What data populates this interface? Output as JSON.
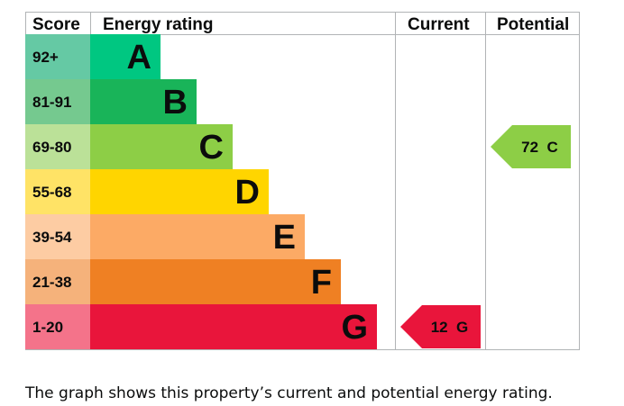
{
  "chart_data": {
    "type": "bar",
    "headers": {
      "score": "Score",
      "energy_rating": "Energy rating",
      "current": "Current",
      "potential": "Potential"
    },
    "bands": [
      {
        "letter": "A",
        "range": "92+",
        "color": "#00c781",
        "score_color": "#65c9a4"
      },
      {
        "letter": "B",
        "range": "81-91",
        "color": "#19b459",
        "score_color": "#75c98f"
      },
      {
        "letter": "C",
        "range": "69-80",
        "color": "#8dce46",
        "score_color": "#bbe198"
      },
      {
        "letter": "D",
        "range": "55-68",
        "color": "#ffd500",
        "score_color": "#ffe366"
      },
      {
        "letter": "E",
        "range": "39-54",
        "color": "#fcaa65",
        "score_color": "#fdcca3"
      },
      {
        "letter": "F",
        "range": "21-38",
        "color": "#ef8023",
        "score_color": "#f5b27b"
      },
      {
        "letter": "G",
        "range": "1-20",
        "color": "#e9153b",
        "score_color": "#f4738a"
      }
    ],
    "current": {
      "value": 12,
      "band": "G",
      "label": "12 G",
      "color": "#e9153b",
      "text_color": "#0b0c0c"
    },
    "potential": {
      "value": 72,
      "band": "C",
      "label": "72 C",
      "color": "#8dce46",
      "text_color": "#0b0c0c"
    }
  },
  "caption": "The graph shows this property’s current and potential energy rating."
}
